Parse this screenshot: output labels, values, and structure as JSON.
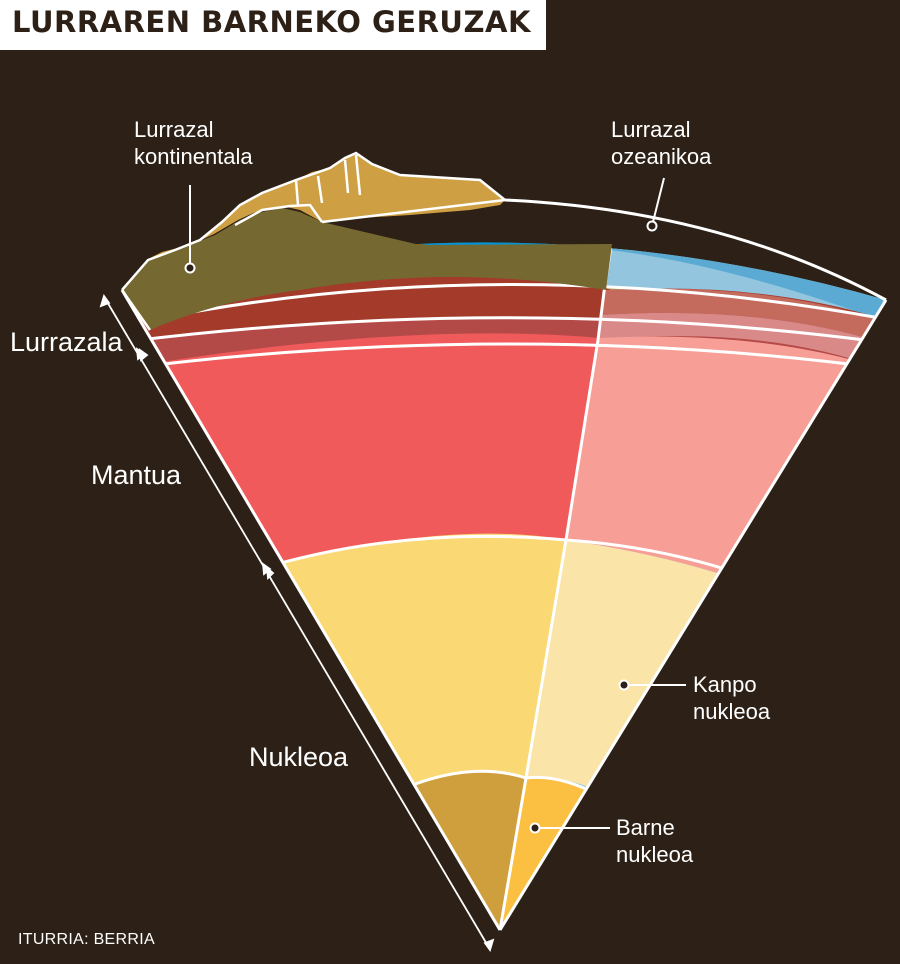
{
  "title": "LURRAREN BARNEKO GERUZAK",
  "labels": {
    "continental_line1": "Lurrazal",
    "continental_line2": "kontinentala",
    "oceanic_line1": "Lurrazal",
    "oceanic_line2": "ozeanikoa",
    "crust": "Lurrazala",
    "mantle": "Mantua",
    "core": "Nukleoa",
    "outer_core_line1": "Kanpo",
    "outer_core_line2": "nukleoa",
    "inner_core_line1": "Barne",
    "inner_core_line2": "nukleoa"
  },
  "source": "ITURRIA: BERRIA",
  "colors": {
    "background": "#2d2117",
    "continental_crust": "#756830",
    "mountain": "#cf9f44",
    "ocean_water": "#0293d6",
    "ocean_surface": "#5aaad3",
    "crust_red_dark": "#a33a2a",
    "crust_red": "#b44a48",
    "mantle_left": "#f05a5a",
    "mantle_right": "#f79e96",
    "outer_core_left": "#fad873",
    "outer_core_right": "#fae4a8",
    "inner_core_left": "#cf9f3e",
    "inner_core_right": "#fbc042"
  }
}
